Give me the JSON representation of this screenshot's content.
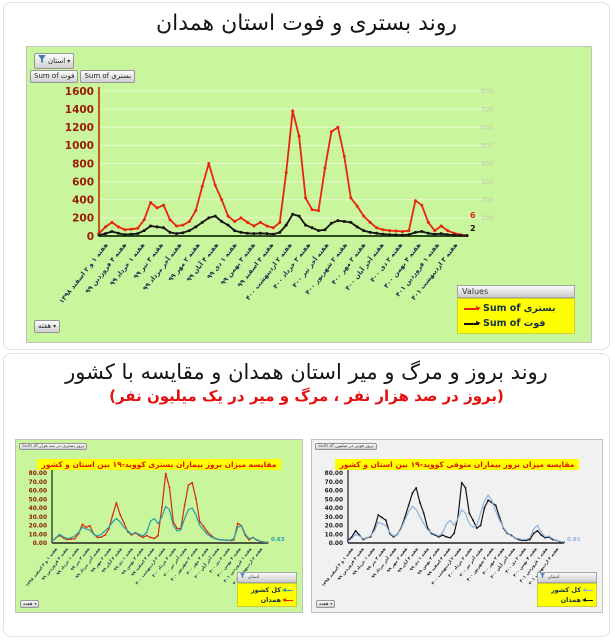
{
  "top_section": {
    "title": "روند بستری و فوت استان همدان",
    "province_filter_label": "استان",
    "field_buttons": [
      "Sum of فوت",
      "Sum of بستری"
    ],
    "week_filter_label": "هفته",
    "legend": {
      "header": "Values",
      "items": [
        {
          "label": "Sum of بستری",
          "color": "#e8250c"
        },
        {
          "label": "Sum of فوت",
          "color": "#141414"
        }
      ]
    }
  },
  "bottom_section": {
    "title": "روند بروز و مرگ و میر استان همدان و مقایسه با کشور",
    "subtitle": "(بروز در صد هزار نفر ، مرگ و میر در یک میلیون نفر)",
    "left_chart": {
      "field_button": "Sum of بروز بستری در صد هزار",
      "filter_label": "استان",
      "week_filter_label": "هفته",
      "legend": [
        {
          "label": "کل کشور",
          "color": "#22a0ab"
        },
        {
          "label": "همدان",
          "color": "#e8250c"
        }
      ]
    },
    "right_chart": {
      "field_button": "Sum of بروز فوتی در میلیون",
      "filter_label": "استان",
      "week_filter_label": "هفته",
      "legend": [
        {
          "label": "کل کشور",
          "color": "#8fb4dc"
        },
        {
          "label": "همدان",
          "color": "#141414"
        }
      ]
    }
  },
  "chart_data": [
    {
      "type": "line",
      "title": "روند بستری و فوت استان همدان",
      "bg": "#c9f59d",
      "ylim_left": [
        0,
        1600
      ],
      "ytick_step_left": 200,
      "ylim_right": [
        0,
        800
      ],
      "ytick_step_right": 100,
      "grid": true,
      "legend_position": "bottom-right",
      "x_tick_labels": [
        "هفته ۱ و ۲ اسفند ۱۳۹۸",
        "هفته ۴ فروردین ۹۹",
        "هفته ۱ خرداد ۹۹",
        "هفته ۳ تیر ۹۹",
        "هفته آخر مرداد ۹۹",
        "هفته ۲ مهر ۹۹",
        "هفته ۴ آبان ۹۹",
        "هفته ۱ دی ۹۹",
        "هفته ۳ بهمن ۹۹",
        "هفته ۴ اسفند ۹۹",
        "هفته ۲ اردیبهشت ۴۰۰",
        "هفته ۳ خرداد ۴۰۰",
        "هفته آخر تیر ۴۰۰",
        "هفته ۲ شهریور ۴۰۰",
        "هفته ۳ مهر ۴۰۰",
        "هفته آخر آبان ۴۰۰",
        "هفته ۲ دی ۴۰۰",
        "هفته ۴ بهمن ۴۰۰",
        "هفته ۱ فروردین ۴۰۱",
        "هفته ۳ اردیبهشت ۴۰۱"
      ],
      "series": [
        {
          "name": "Sum of بستری",
          "color": "#e8250c",
          "axis": "left",
          "markers": true,
          "end_label": "6",
          "values": [
            30,
            100,
            150,
            100,
            70,
            75,
            85,
            180,
            370,
            310,
            340,
            180,
            110,
            120,
            160,
            280,
            550,
            800,
            560,
            400,
            220,
            160,
            200,
            150,
            110,
            150,
            110,
            90,
            150,
            700,
            1380,
            1100,
            420,
            290,
            280,
            750,
            1150,
            1200,
            880,
            420,
            330,
            220,
            150,
            90,
            70,
            60,
            55,
            50,
            60,
            390,
            340,
            150,
            60,
            110,
            60,
            30,
            15,
            6
          ]
        },
        {
          "name": "Sum of فوت",
          "color": "#141414",
          "axis": "right",
          "markers": true,
          "end_label": "2",
          "values": [
            5,
            13,
            25,
            15,
            8,
            10,
            13,
            30,
            55,
            50,
            45,
            20,
            13,
            18,
            30,
            50,
            75,
            100,
            110,
            80,
            60,
            30,
            20,
            15,
            13,
            15,
            13,
            10,
            20,
            60,
            120,
            110,
            60,
            45,
            30,
            35,
            70,
            85,
            80,
            75,
            50,
            30,
            20,
            15,
            10,
            8,
            6,
            5,
            8,
            20,
            25,
            15,
            10,
            13,
            8,
            5,
            3,
            2
          ]
        }
      ]
    },
    {
      "type": "line",
      "title": "مقایسه میزان بروز بیماران بستری کووید-۱۹ بین استان و کشور",
      "bg": "#c9f59d",
      "ylim": [
        0,
        80
      ],
      "ytick_step": 10,
      "ytick_format": "0.00",
      "grid": false,
      "x_tick_labels": [
        "هفته ۱ و ۲ اسفند ۱۳۹۸",
        "هفته ۴ فروردین ۹۹",
        "هفته ۱ خرداد ۹۹",
        "هفته ۳ تیر ۹۹",
        "هفته آخر مرداد ۹۹",
        "هفته ۲ مهر ۹۹",
        "هفته ۴ آبان ۹۹",
        "هفته ۱ دی ۹۹",
        "هفته ۳ بهمن ۹۹",
        "هفته ۴ اسفند ۹۹",
        "هفته ۲ اردیبهشت ۴۰۰",
        "هفته ۳ خرداد ۴۰۰",
        "هفته آخر تیر ۴۰۰",
        "هفته ۲ شهریور ۴۰۰",
        "هفته ۳ مهر ۴۰۰",
        "هفته آخر آبان ۴۰۰",
        "هفته ۲ دی ۴۰۰",
        "هفته ۴ بهمن ۴۰۰",
        "هفته ۱ فروردین ۴۰۱",
        "هفته ۳ اردیبهشت ۴۰۱"
      ],
      "series": [
        {
          "name": "همدان",
          "color": "#d9290f",
          "markers": true,
          "values": [
            1.7,
            5.8,
            8.6,
            5.8,
            4,
            4.3,
            4.9,
            10.4,
            21.3,
            17.8,
            19.6,
            10.4,
            6.3,
            6.9,
            9.2,
            16.1,
            31.6,
            46,
            32.2,
            23,
            12.7,
            9.2,
            11.5,
            8.6,
            6.3,
            8.6,
            6.3,
            5.2,
            8.6,
            40.3,
            79.4,
            63.3,
            24.2,
            16.7,
            16.1,
            43.1,
            66.1,
            69,
            50.6,
            24.2,
            19,
            12.7,
            8.6,
            5.2,
            4,
            3.5,
            3.2,
            2.9,
            3.5,
            22.4,
            19.6,
            8.6,
            3.5,
            6.3,
            3.5,
            1.7,
            0.9,
            0.7
          ]
        },
        {
          "name": "کل کشور",
          "color": "#22a0ab",
          "markers": false,
          "end_label": "0.63",
          "values": [
            2,
            6,
            10,
            7,
            5,
            6,
            8,
            12,
            18,
            16,
            15,
            10,
            8,
            10,
            14,
            18,
            24,
            28,
            24,
            18,
            14,
            10,
            12,
            10,
            8,
            12,
            25,
            28,
            22,
            30,
            42,
            38,
            20,
            14,
            15,
            28,
            38,
            40,
            32,
            20,
            15,
            10,
            7,
            5,
            4,
            3.5,
            3,
            3,
            5,
            18,
            20,
            10,
            5,
            6,
            4,
            2,
            1,
            0.63
          ]
        }
      ]
    },
    {
      "type": "line",
      "title": "مقایسه میزان بروز بیماران متوفی کووید-۱۹ بین استان و کشور",
      "bg": "#f1f1f1",
      "ylim": [
        0,
        80
      ],
      "ytick_step": 10,
      "ytick_format": "0.00",
      "grid": false,
      "x_tick_labels": [
        "هفته ۱ و ۲ اسفند ۱۳۹۸",
        "هفته ۴ فروردین ۹۹",
        "هفته ۱ خرداد ۹۹",
        "هفته ۳ تیر ۹۹",
        "هفته آخر مرداد ۹۹",
        "هفته ۲ مهر ۹۹",
        "هفته ۴ آبان ۹۹",
        "هفته ۱ دی ۹۹",
        "هفته ۳ بهمن ۹۹",
        "هفته ۴ اسفند ۹۹",
        "هفته ۲ اردیبهشت ۴۰۰",
        "هفته ۳ خرداد ۴۰۰",
        "هفته آخر تیر ۴۰۰",
        "هفته ۲ شهریور ۴۰۰",
        "هفته ۳ مهر ۴۰۰",
        "هفته آخر آبان ۴۰۰",
        "هفته ۲ دی ۴۰۰",
        "هفته ۴ بهمن ۴۰۰",
        "هفته ۱ فروردین ۴۰۱",
        "هفته ۳ اردیبهشت ۴۰۱"
      ],
      "series": [
        {
          "name": "همدان",
          "color": "#141414",
          "markers": true,
          "values": [
            3,
            7,
            14,
            9,
            4,
            6,
            7,
            17,
            32,
            29,
            26,
            11,
            7,
            10,
            17,
            29,
            43,
            57,
            63,
            46,
            34,
            17,
            11,
            9,
            7,
            9,
            7,
            6,
            11,
            29,
            69,
            63,
            34,
            26,
            17,
            20,
            40,
            49,
            46,
            43,
            29,
            17,
            11,
            9,
            6,
            4,
            3,
            3,
            4,
            11,
            14,
            9,
            6,
            7,
            4,
            3,
            1.5,
            0.95
          ]
        },
        {
          "name": "کل کشور",
          "color": "#8fb4dc",
          "markers": false,
          "end_label": "0.91",
          "values": [
            2,
            5,
            10,
            8,
            5,
            6,
            8,
            14,
            24,
            22,
            20,
            12,
            8,
            10,
            16,
            26,
            36,
            42,
            38,
            30,
            22,
            15,
            12,
            10,
            8,
            12,
            22,
            26,
            20,
            28,
            38,
            34,
            22,
            18,
            20,
            34,
            48,
            55,
            48,
            36,
            26,
            18,
            12,
            8,
            6,
            5,
            4,
            4,
            6,
            16,
            20,
            12,
            7,
            8,
            5,
            3,
            2,
            0.91
          ]
        }
      ]
    }
  ]
}
